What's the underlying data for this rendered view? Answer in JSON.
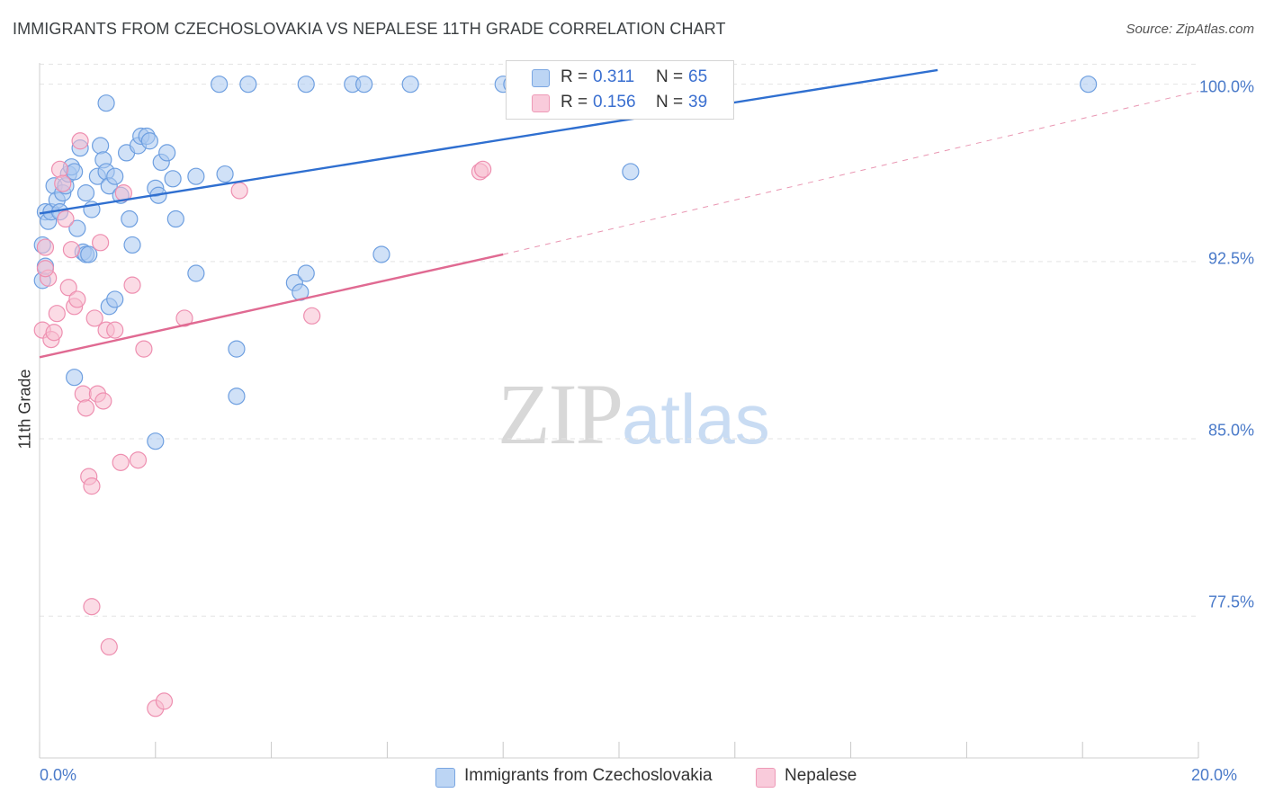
{
  "header": {
    "title": "IMMIGRANTS FROM CZECHOSLOVAKIA VS NEPALESE 11TH GRADE CORRELATION CHART",
    "source": "Source: ZipAtlas.com"
  },
  "watermark": {
    "zip": "ZIP",
    "atlas": "atlas"
  },
  "legend": {
    "series": [
      {
        "r_label": "R =",
        "r_value": "0.311",
        "n_label": "N =",
        "n_value": "65"
      },
      {
        "r_label": "R =",
        "r_value": "0.156",
        "n_label": "N =",
        "n_value": "39"
      }
    ]
  },
  "bottom_legend": {
    "items": [
      {
        "label": "Immigrants from Czechoslovakia"
      },
      {
        "label": "Nepalese"
      }
    ]
  },
  "colors": {
    "blue_fill": "#a9c8f0",
    "blue_stroke": "#6e9fe0",
    "blue_line": "#2f6fd0",
    "pink_fill": "#f7bdd0",
    "pink_stroke": "#ee8fb0",
    "pink_line": "#e06a92",
    "tick_text": "#4a7ac9",
    "grid": "#e3e3e3"
  },
  "chart_data": {
    "type": "scatter",
    "title": "IMMIGRANTS FROM CZECHOSLOVAKIA VS NEPALESE 11TH GRADE CORRELATION CHART",
    "xlabel": "",
    "ylabel": "11th Grade",
    "xlim": [
      0,
      20
    ],
    "ylim": [
      71.5,
      100.9
    ],
    "x_tick_labels": [
      "0.0%",
      "20.0%"
    ],
    "y_ticks": [
      100.0,
      92.5,
      85.0,
      77.5
    ],
    "y_tick_labels": [
      "100.0%",
      "92.5%",
      "85.0%",
      "77.5%"
    ],
    "grid": true,
    "series": [
      {
        "name": "Immigrants from Czechoslovakia",
        "r": 0.311,
        "n": 65,
        "trend": {
          "x0": 0.0,
          "y0": 94.53,
          "x1": 15.5,
          "y1": 100.6,
          "dashed_to_x": null
        },
        "points": [
          [
            0.1,
            94.6
          ],
          [
            0.15,
            94.2
          ],
          [
            0.2,
            94.6
          ],
          [
            0.25,
            95.7
          ],
          [
            0.3,
            95.1
          ],
          [
            0.35,
            94.6
          ],
          [
            0.4,
            95.4
          ],
          [
            0.45,
            95.7
          ],
          [
            0.5,
            96.2
          ],
          [
            0.55,
            96.5
          ],
          [
            0.6,
            96.3
          ],
          [
            0.65,
            93.9
          ],
          [
            0.7,
            97.3
          ],
          [
            0.75,
            92.9
          ],
          [
            0.8,
            95.4
          ],
          [
            0.9,
            94.7
          ],
          [
            1.0,
            96.1
          ],
          [
            1.05,
            97.4
          ],
          [
            1.1,
            96.8
          ],
          [
            1.15,
            96.3
          ],
          [
            1.2,
            95.7
          ],
          [
            1.3,
            96.1
          ],
          [
            1.4,
            95.3
          ],
          [
            1.5,
            97.1
          ],
          [
            1.55,
            94.3
          ],
          [
            1.6,
            93.2
          ],
          [
            1.7,
            97.4
          ],
          [
            1.75,
            97.8
          ],
          [
            1.85,
            97.8
          ],
          [
            1.9,
            97.6
          ],
          [
            2.0,
            95.6
          ],
          [
            2.05,
            95.3
          ],
          [
            2.1,
            96.7
          ],
          [
            2.2,
            97.1
          ],
          [
            2.3,
            96.0
          ],
          [
            2.35,
            94.3
          ],
          [
            1.15,
            99.2
          ],
          [
            3.1,
            100.0
          ],
          [
            3.6,
            100.0
          ],
          [
            4.6,
            100.0
          ],
          [
            5.4,
            100.0
          ],
          [
            5.6,
            100.0
          ],
          [
            6.4,
            100.0
          ],
          [
            8.0,
            100.0
          ],
          [
            8.15,
            100.0
          ],
          [
            18.1,
            100.0
          ],
          [
            0.05,
            93.2
          ],
          [
            0.05,
            91.7
          ],
          [
            0.1,
            92.3
          ],
          [
            0.8,
            92.8
          ],
          [
            0.6,
            87.6
          ],
          [
            1.2,
            90.6
          ],
          [
            1.3,
            90.9
          ],
          [
            2.7,
            92.0
          ],
          [
            3.4,
            88.8
          ],
          [
            3.4,
            86.8
          ],
          [
            4.4,
            91.6
          ],
          [
            4.5,
            91.2
          ],
          [
            4.6,
            92.0
          ],
          [
            5.9,
            92.8
          ],
          [
            10.2,
            96.3
          ],
          [
            2.0,
            84.9
          ],
          [
            2.7,
            96.1
          ],
          [
            3.2,
            96.2
          ],
          [
            0.85,
            92.8
          ]
        ]
      },
      {
        "name": "Nepalese",
        "r": 0.156,
        "n": 39,
        "trend": {
          "x0": 0.0,
          "y0": 88.45,
          "x1": 8.0,
          "y1": 92.8,
          "dashed_to_x": 20.0,
          "dashed_to_y": 99.7
        },
        "points": [
          [
            0.05,
            89.6
          ],
          [
            0.1,
            93.1
          ],
          [
            0.15,
            91.8
          ],
          [
            0.2,
            89.2
          ],
          [
            0.25,
            89.5
          ],
          [
            0.3,
            90.3
          ],
          [
            0.35,
            96.4
          ],
          [
            0.4,
            95.8
          ],
          [
            0.45,
            94.3
          ],
          [
            0.5,
            91.4
          ],
          [
            0.55,
            93.0
          ],
          [
            0.6,
            90.6
          ],
          [
            0.65,
            90.9
          ],
          [
            0.7,
            97.6
          ],
          [
            0.75,
            86.9
          ],
          [
            0.8,
            86.3
          ],
          [
            0.85,
            83.4
          ],
          [
            0.9,
            83.0
          ],
          [
            0.95,
            90.1
          ],
          [
            1.0,
            86.9
          ],
          [
            1.05,
            93.3
          ],
          [
            1.1,
            86.6
          ],
          [
            1.15,
            89.6
          ],
          [
            1.2,
            76.2
          ],
          [
            1.3,
            89.6
          ],
          [
            1.4,
            84.0
          ],
          [
            1.45,
            95.4
          ],
          [
            1.6,
            91.5
          ],
          [
            1.7,
            84.1
          ],
          [
            1.8,
            88.8
          ],
          [
            2.0,
            73.6
          ],
          [
            2.15,
            73.9
          ],
          [
            2.5,
            90.1
          ],
          [
            3.45,
            95.5
          ],
          [
            4.7,
            90.2
          ],
          [
            7.6,
            96.3
          ],
          [
            7.65,
            96.4
          ],
          [
            0.9,
            77.9
          ],
          [
            0.1,
            92.2
          ]
        ]
      }
    ]
  }
}
